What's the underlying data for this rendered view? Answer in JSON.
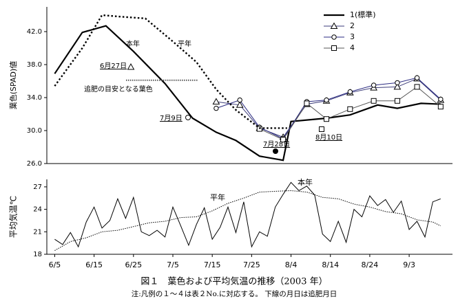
{
  "chart_data": [
    {
      "type": "line",
      "y_label": "葉色(SPAD)値",
      "xlim": [
        "6/3",
        "9/14"
      ],
      "ylim": [
        26,
        45
      ],
      "yticks": [
        {
          "value": 26,
          "label": "26.0"
        },
        {
          "value": 30,
          "label": "30.0"
        },
        {
          "value": 34,
          "label": "34.0"
        },
        {
          "value": 38,
          "label": "38.0"
        },
        {
          "value": 42,
          "label": "42.0"
        }
      ],
      "legend": "upper right",
      "series": [
        {
          "name": "1(標準)",
          "color": "#000000",
          "width": 2.2,
          "marker": "none",
          "dash": "solid",
          "x": [
            "6/5",
            "6/12",
            "6/18",
            "6/25",
            "7/3",
            "7/10",
            "7/16",
            "7/21",
            "7/27",
            "8/2",
            "8/4",
            "8/13",
            "8/19",
            "8/26",
            "8/31",
            "9/6",
            "9/11"
          ],
          "values": [
            36.9,
            41.9,
            42.7,
            39.6,
            35.7,
            31.5,
            29.8,
            28.8,
            26.9,
            26.4,
            31.1,
            31.5,
            31.9,
            33.1,
            32.7,
            33.3,
            33.2
          ]
        },
        {
          "name": "2",
          "color": "#3a3a78",
          "width": 1,
          "marker": "triangle",
          "dash": "solid",
          "x": [
            "7/16",
            "7/22",
            "7/27",
            "8/2",
            "8/8",
            "8/13",
            "8/19",
            "8/25",
            "8/31",
            "9/5",
            "9/11"
          ],
          "values": [
            33.5,
            33.1,
            30.3,
            29.2,
            33.2,
            33.6,
            34.6,
            35.2,
            35.3,
            36.3,
            33.7
          ]
        },
        {
          "name": "3",
          "color": "#2a2a80",
          "width": 1,
          "marker": "circle",
          "dash": "solid",
          "x": [
            "7/16",
            "7/22",
            "7/27",
            "8/2",
            "8/8",
            "8/13",
            "8/19",
            "8/25",
            "8/31",
            "9/5",
            "9/11"
          ],
          "values": [
            32.7,
            33.7,
            30.4,
            29.0,
            33.5,
            33.7,
            34.7,
            35.5,
            35.8,
            36.4,
            33.8
          ]
        },
        {
          "name": "4",
          "color": "#555555",
          "width": 1,
          "marker": "square",
          "dash": "solid",
          "x": [
            "7/27",
            "8/2",
            "8/8",
            "8/13",
            "8/19",
            "8/25",
            "8/31",
            "9/5",
            "9/11"
          ],
          "values": [
            30.2,
            28.9,
            33.3,
            31.4,
            32.6,
            33.6,
            33.6,
            35.3,
            32.9
          ]
        },
        {
          "name": "平年",
          "color": "#000000",
          "width": 2.4,
          "marker": "none",
          "dash": "dotted",
          "x": [
            "6/5",
            "6/12",
            "6/17",
            "6/22",
            "6/28",
            "7/5",
            "7/11",
            "7/16",
            "7/21",
            "7/27",
            "8/3"
          ],
          "values": [
            35.4,
            40.0,
            44.0,
            43.8,
            43.6,
            40.8,
            38.3,
            35.0,
            32.5,
            30.3,
            30.3
          ]
        }
      ],
      "target_line": 36.1,
      "annotations": [
        "本年",
        "平年",
        "6月27日",
        "追肥の目安となる葉色",
        "7月9日",
        "7月28日",
        "8月10日"
      ]
    },
    {
      "type": "line",
      "y_label": "平均気温℃",
      "xlim": [
        "6/3",
        "9/14"
      ],
      "xticks": [
        "6/5",
        "6/15",
        "6/25",
        "7/5",
        "7/15",
        "7/25",
        "8/4",
        "8/14",
        "8/24",
        "9/3"
      ],
      "ylim": [
        18,
        28
      ],
      "yticks": [
        18,
        21,
        24,
        27
      ],
      "series": [
        {
          "name": "本年",
          "color": "#000000",
          "width": 1,
          "dash": "solid",
          "x": [
            "6/5",
            "6/7",
            "6/9",
            "6/11",
            "6/13",
            "6/15",
            "6/17",
            "6/19",
            "6/21",
            "6/23",
            "6/25",
            "6/27",
            "6/29",
            "7/1",
            "7/3",
            "7/5",
            "7/7",
            "7/9",
            "7/11",
            "7/13",
            "7/15",
            "7/17",
            "7/19",
            "7/21",
            "7/23",
            "7/25",
            "7/27",
            "7/29",
            "7/31",
            "8/2",
            "8/4",
            "8/6",
            "8/8",
            "8/10",
            "8/12",
            "8/14",
            "8/16",
            "8/18",
            "8/20",
            "8/22",
            "8/24",
            "8/26",
            "8/28",
            "8/30",
            "9/1",
            "9/3",
            "9/5",
            "9/7",
            "9/9",
            "9/11"
          ],
          "values": [
            20.0,
            19.3,
            20.9,
            19.0,
            22.3,
            24.3,
            21.5,
            22.5,
            25.4,
            22.8,
            25.6,
            21.0,
            20.5,
            21.2,
            20.3,
            24.3,
            21.8,
            19.2,
            22.0,
            24.2,
            20.0,
            21.6,
            24.3,
            20.9,
            25.0,
            19.0,
            21.0,
            20.4,
            24.3,
            26.0,
            27.6,
            26.5,
            27.1,
            25.9,
            20.7,
            19.7,
            22.4,
            19.6,
            24.0,
            23.0,
            25.8,
            24.5,
            25.3,
            23.6,
            25.1,
            21.3,
            22.4,
            20.3,
            25.0,
            25.4
          ]
        },
        {
          "name": "平年",
          "color": "#000000",
          "width": 1,
          "dash": "dotted",
          "x": [
            "6/5",
            "6/9",
            "6/13",
            "6/17",
            "6/21",
            "6/25",
            "6/29",
            "7/3",
            "7/7",
            "7/11",
            "7/15",
            "7/19",
            "7/23",
            "7/27",
            "7/31",
            "8/4",
            "8/8",
            "8/12",
            "8/16",
            "8/20",
            "8/24",
            "8/28",
            "9/1",
            "9/5",
            "9/9",
            "9/11"
          ],
          "values": [
            18.5,
            19.7,
            20.2,
            21.0,
            21.2,
            21.7,
            22.2,
            22.4,
            22.9,
            23.0,
            23.8,
            24.8,
            25.5,
            26.3,
            26.4,
            26.5,
            26.3,
            25.6,
            25.4,
            24.7,
            24.3,
            23.7,
            23.4,
            22.6,
            22.3,
            21.8
          ]
        }
      ]
    }
  ],
  "caption": "図１　葉色および平均気温の推移（2003 年）",
  "note": "注:凡例の１～４は表２No.に対応する。 下線の月日は追肥月日"
}
